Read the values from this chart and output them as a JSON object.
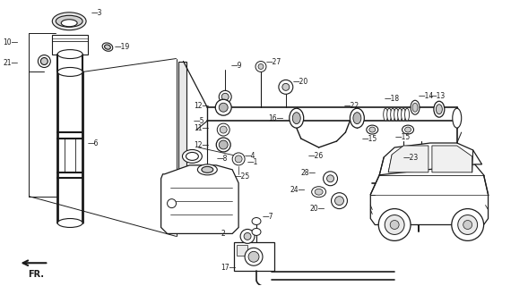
{
  "bg_color": "#ffffff",
  "line_color": "#1a1a1a",
  "gray": "#888888",
  "figsize": [
    5.89,
    3.2
  ],
  "dpi": 100
}
